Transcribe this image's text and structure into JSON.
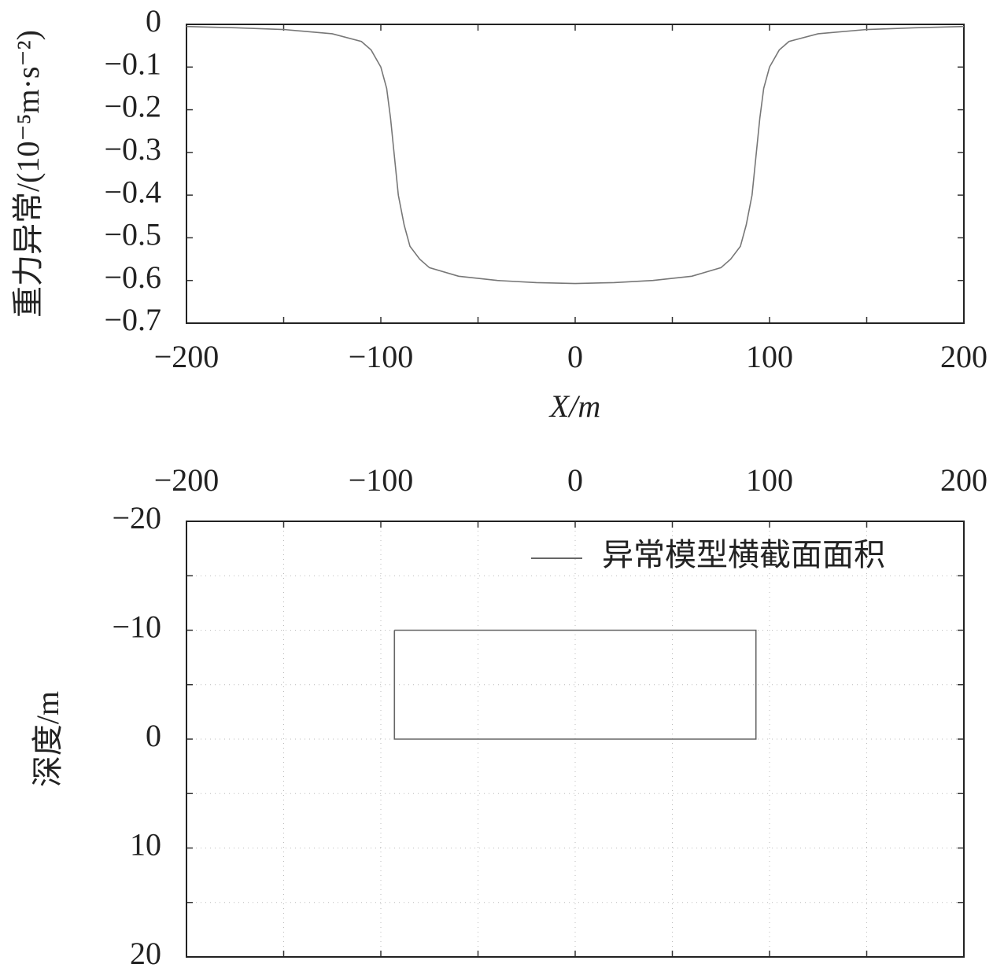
{
  "chart_data": [
    {
      "type": "line",
      "ylabel": "重力异常/(10⁻⁵m·s⁻²)",
      "xlabel": "X/m",
      "x": [
        -200,
        -175,
        -150,
        -125,
        -110,
        -105,
        -100,
        -97,
        -95,
        -93,
        -91,
        -88,
        -85,
        -80,
        -75,
        -60,
        -40,
        -20,
        0,
        20,
        40,
        60,
        75,
        80,
        85,
        88,
        91,
        93,
        95,
        97,
        100,
        105,
        110,
        125,
        150,
        175,
        200
      ],
      "values": [
        -0.005,
        -0.008,
        -0.012,
        -0.022,
        -0.04,
        -0.06,
        -0.1,
        -0.15,
        -0.22,
        -0.31,
        -0.4,
        -0.47,
        -0.52,
        -0.55,
        -0.57,
        -0.59,
        -0.6,
        -0.605,
        -0.607,
        -0.605,
        -0.6,
        -0.59,
        -0.57,
        -0.55,
        -0.52,
        -0.47,
        -0.4,
        -0.31,
        -0.22,
        -0.15,
        -0.1,
        -0.06,
        -0.04,
        -0.022,
        -0.012,
        -0.008,
        -0.005
      ],
      "color": "#777777",
      "xlim": [
        -200,
        200
      ],
      "xticks": [
        {
          "value": -200,
          "label": "−200"
        },
        {
          "value": -100,
          "label": "−100"
        },
        0,
        100,
        200
      ],
      "minor_xticks": [
        -150,
        -50,
        50,
        150
      ],
      "ylim": [
        -0.7,
        0
      ],
      "yticks": [
        0,
        {
          "value": -0.1,
          "label": "−0.1"
        },
        {
          "value": -0.2,
          "label": "−0.2"
        },
        {
          "value": -0.3,
          "label": "−0.3"
        },
        {
          "value": -0.4,
          "label": "−0.4"
        },
        {
          "value": -0.5,
          "label": "−0.5"
        },
        {
          "value": -0.6,
          "label": "−0.6"
        },
        {
          "value": -0.7,
          "label": "−0.7"
        }
      ],
      "minor_yticks": [],
      "grid": false,
      "x_axis_position": "bottom",
      "y_inverted": false
    },
    {
      "type": "line",
      "ylabel": "深度/m",
      "x": [
        -93,
        93,
        93,
        -93,
        -93
      ],
      "series": [
        {
          "name": "异常模型横截面面积",
          "color": "#666666",
          "values": [
            -10,
            -10,
            0,
            0,
            -10
          ]
        }
      ],
      "legend": "upper right",
      "xlim": [
        -200,
        200
      ],
      "xticks": [
        {
          "value": -200,
          "label": "−200"
        },
        {
          "value": -100,
          "label": "−100"
        },
        0,
        100,
        200
      ],
      "minor_xticks": [
        -150,
        -50,
        50,
        150
      ],
      "ylim": [
        -20,
        20
      ],
      "yticks": [
        {
          "value": -20,
          "label": "−20"
        },
        {
          "value": -10,
          "label": "−10"
        },
        0,
        10,
        20
      ],
      "minor_yticks": [
        -15,
        -5,
        5,
        15
      ],
      "grid": true,
      "x_axis_position": "top",
      "y_inverted": true
    }
  ]
}
